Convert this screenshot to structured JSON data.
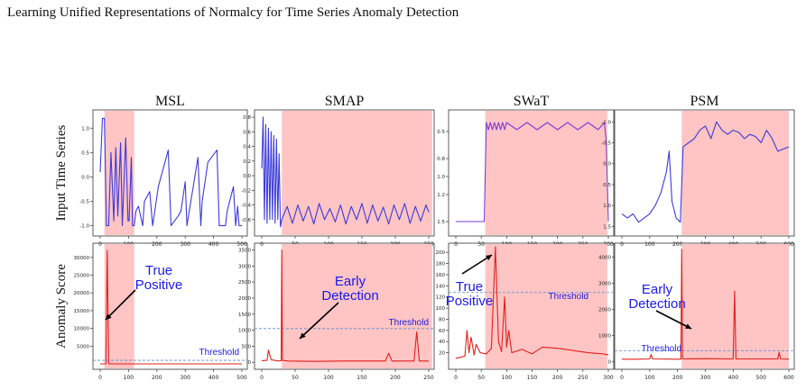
{
  "header": {
    "running_title": "Learning Unified Representations of Normalcy for Time Series Anomaly Detection"
  },
  "figure": {
    "row_labels": [
      "Input Time Series",
      "Anomaly Score"
    ],
    "datasets": [
      "MSL",
      "SMAP",
      "SWaT",
      "PSM"
    ]
  },
  "chart_data": [
    {
      "type": "line",
      "dataset": "MSL",
      "row": "Input Time Series",
      "color": "#3b3bdb",
      "xlim": [
        0,
        500
      ],
      "ylim": [
        -1.1,
        1.3
      ],
      "xticks": [
        "0",
        "100",
        "200",
        "300",
        "400",
        "500"
      ],
      "yticks": [
        "-1.0",
        "-0.5",
        "0.0",
        "0.5",
        "1.0"
      ],
      "highlight_x": [
        15,
        120
      ],
      "x": [
        0,
        8,
        15,
        22,
        30,
        38,
        48,
        55,
        62,
        72,
        78,
        90,
        98,
        102,
        110,
        114,
        120,
        126,
        135,
        150,
        156,
        175,
        185,
        190,
        205,
        240,
        250,
        275,
        285,
        300,
        306,
        345,
        355,
        360,
        380,
        412,
        420,
        442,
        448,
        470,
        478,
        485,
        490,
        500
      ],
      "y": [
        0.1,
        1.2,
        1.2,
        -1.0,
        -1.0,
        0.5,
        -0.9,
        0.6,
        -0.8,
        0.7,
        -1.0,
        0.8,
        -0.9,
        -0.9,
        0.4,
        -1.0,
        -1.0,
        -0.7,
        -0.6,
        -1.0,
        -0.5,
        -0.3,
        -1.0,
        -0.8,
        -0.2,
        0.55,
        -1.0,
        -0.8,
        -0.7,
        -0.1,
        -1.0,
        0.4,
        -1.0,
        -0.5,
        0.3,
        0.55,
        -1.0,
        -1.0,
        -0.7,
        -0.2,
        -1.0,
        -0.6,
        -1.0,
        -1.0
      ]
    },
    {
      "type": "line",
      "dataset": "SMAP",
      "row": "Input Time Series",
      "color": "#3b3bdb",
      "xlim": [
        0,
        250
      ],
      "ylim": [
        -0.75,
        0.85
      ],
      "xticks": [
        "0",
        "50",
        "100",
        "150",
        "200",
        "250"
      ],
      "yticks": [
        "-0.6",
        "-0.4",
        "-0.2",
        "0.0",
        "0.2",
        "0.4",
        "0.6",
        "0.8"
      ],
      "highlight_x": [
        30,
        255
      ],
      "x": [
        0,
        2,
        4,
        6,
        8,
        10,
        12,
        14,
        16,
        18,
        20,
        22,
        24,
        26,
        28,
        30,
        38,
        46,
        54,
        62,
        70,
        78,
        86,
        94,
        102,
        110,
        118,
        126,
        134,
        142,
        150,
        158,
        166,
        174,
        182,
        190,
        198,
        206,
        214,
        222,
        230,
        238,
        246,
        250
      ],
      "y": [
        0.1,
        0.8,
        -0.6,
        0.7,
        -0.65,
        0.65,
        -0.6,
        0.6,
        -0.6,
        0.55,
        -0.65,
        0.5,
        -0.6,
        0.3,
        -0.7,
        -0.6,
        -0.42,
        -0.65,
        -0.4,
        -0.62,
        -0.42,
        -0.66,
        -0.38,
        -0.6,
        -0.45,
        -0.63,
        -0.4,
        -0.66,
        -0.42,
        -0.6,
        -0.38,
        -0.65,
        -0.4,
        -0.62,
        -0.43,
        -0.66,
        -0.4,
        -0.6,
        -0.38,
        -0.65,
        -0.42,
        -0.62,
        -0.4,
        -0.5
      ]
    },
    {
      "type": "line",
      "dataset": "SWaT",
      "row": "Input Time Series",
      "color": "#7a3bd6",
      "xlim": [
        0,
        300
      ],
      "ylim": [
        1.6,
        0.3
      ],
      "xticks": [
        "0",
        "50",
        "100",
        "150",
        "200",
        "250",
        "300"
      ],
      "yticks": [
        "0.5",
        "0.8",
        "1.0",
        "1.2",
        "1.5"
      ],
      "highlight_x": [
        58,
        298
      ],
      "x": [
        0,
        56,
        60,
        64,
        68,
        72,
        76,
        80,
        84,
        88,
        92,
        96,
        100,
        120,
        140,
        160,
        180,
        200,
        220,
        240,
        260,
        280,
        292,
        296,
        300
      ],
      "y": [
        1.5,
        1.5,
        0.4,
        0.48,
        0.4,
        0.48,
        0.4,
        0.48,
        0.4,
        0.48,
        0.4,
        0.48,
        0.4,
        0.48,
        0.4,
        0.48,
        0.4,
        0.48,
        0.4,
        0.48,
        0.4,
        0.48,
        0.4,
        0.6,
        1.5
      ]
    },
    {
      "type": "line",
      "dataset": "PSM",
      "row": "Input Time Series",
      "color": "#3b3bdb",
      "xlim": [
        0,
        600
      ],
      "ylim": [
        1.6,
        -1.2
      ],
      "xticks": [
        "0",
        "100",
        "200",
        "300",
        "400",
        "500",
        "600"
      ],
      "yticks": [
        "-1.0",
        "-0.5",
        "0.0",
        "0.5",
        "1.0",
        "1.5"
      ],
      "highlight_x": [
        215,
        600
      ],
      "x": [
        0,
        20,
        40,
        60,
        80,
        100,
        120,
        140,
        160,
        170,
        180,
        195,
        210,
        220,
        240,
        260,
        280,
        300,
        320,
        340,
        360,
        380,
        400,
        420,
        440,
        460,
        480,
        500,
        520,
        540,
        560,
        580,
        600
      ],
      "y": [
        1.2,
        1.3,
        1.2,
        1.4,
        1.3,
        1.2,
        1.0,
        0.7,
        0.2,
        -0.3,
        0.9,
        1.3,
        1.4,
        -0.4,
        -0.5,
        -0.6,
        -0.8,
        -0.9,
        -0.6,
        -1.0,
        -0.8,
        -0.7,
        -0.8,
        -0.75,
        -0.6,
        -0.7,
        -0.65,
        -0.5,
        -0.8,
        -0.6,
        -0.3,
        -0.35,
        -0.4
      ]
    },
    {
      "type": "line",
      "dataset": "MSL",
      "row": "Anomaly Score",
      "color": "#e0201a",
      "xlim": [
        0,
        500
      ],
      "ylim": [
        0,
        33000
      ],
      "xticks": [
        "0",
        "100",
        "200",
        "300",
        "400",
        "500"
      ],
      "yticks": [
        "5000",
        "10000",
        "15000",
        "20000",
        "25000",
        "30000"
      ],
      "highlight_x": [
        15,
        120
      ],
      "threshold": 1000,
      "x": [
        0,
        10,
        20,
        25,
        30,
        100,
        200,
        300,
        400,
        500
      ],
      "y": [
        0,
        0,
        0,
        32000,
        0,
        0,
        0,
        0,
        0,
        0
      ]
    },
    {
      "type": "line",
      "dataset": "SMAP",
      "row": "Anomaly Score",
      "color": "#e0201a",
      "xlim": [
        0,
        250
      ],
      "ylim": [
        -50,
        3600
      ],
      "xticks": [
        "0",
        "50",
        "100",
        "150",
        "200",
        "250"
      ],
      "yticks": [
        "0",
        "500",
        "1000",
        "1500",
        "2000",
        "2500",
        "3000",
        "3500"
      ],
      "highlight_x": [
        30,
        255
      ],
      "threshold": 1050,
      "x": [
        0,
        8,
        10,
        14,
        25,
        29,
        30,
        31,
        40,
        80,
        120,
        185,
        190,
        195,
        228,
        232,
        236,
        250
      ],
      "y": [
        50,
        60,
        380,
        80,
        40,
        50,
        3500,
        60,
        40,
        30,
        40,
        40,
        280,
        40,
        40,
        950,
        40,
        40
      ]
    },
    {
      "type": "line",
      "dataset": "SWaT",
      "row": "Anomaly Score",
      "color": "#e0201a",
      "xlim": [
        0,
        300
      ],
      "ylim": [
        0,
        210
      ],
      "xticks": [
        "0",
        "50",
        "100",
        "150",
        "200",
        "250",
        "300"
      ],
      "yticks": [
        "20",
        "40",
        "60",
        "80",
        "100",
        "120",
        "140",
        "160",
        "180",
        "200"
      ],
      "highlight_x": [
        58,
        298
      ],
      "threshold": 128,
      "x": [
        0,
        10,
        18,
        22,
        26,
        30,
        36,
        40,
        48,
        60,
        70,
        78,
        84,
        90,
        96,
        100,
        104,
        110,
        130,
        150,
        170,
        200,
        230,
        260,
        290,
        300
      ],
      "y": [
        10,
        12,
        14,
        60,
        20,
        48,
        16,
        35,
        20,
        18,
        28,
        210,
        40,
        22,
        120,
        30,
        60,
        20,
        26,
        18,
        30,
        28,
        24,
        20,
        18,
        16
      ]
    },
    {
      "type": "line",
      "dataset": "PSM",
      "row": "Anomaly Score",
      "color": "#e0201a",
      "xlim": [
        0,
        600
      ],
      "ylim": [
        -80,
        4400
      ],
      "xticks": [
        "0",
        "100",
        "200",
        "300",
        "400",
        "500",
        "600"
      ],
      "yticks": [
        "0",
        "1000",
        "2000",
        "3000",
        "4000"
      ],
      "highlight_x": [
        215,
        600
      ],
      "threshold": 420,
      "x": [
        0,
        50,
        100,
        105,
        110,
        200,
        212,
        215,
        218,
        230,
        300,
        400,
        405,
        410,
        500,
        560,
        565,
        570,
        600
      ],
      "y": [
        100,
        100,
        110,
        280,
        110,
        100,
        100,
        4300,
        120,
        110,
        120,
        110,
        2700,
        110,
        110,
        110,
        360,
        110,
        100
      ]
    }
  ],
  "annotations": {
    "msl": "True Positive",
    "smap": "Early Detection",
    "swat": "True Positive",
    "psm": "Early Detection",
    "threshold": "Threshold"
  }
}
